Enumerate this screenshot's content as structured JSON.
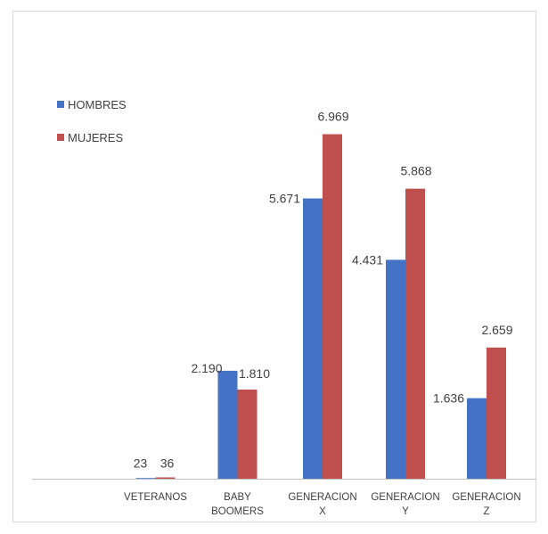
{
  "chart_data": {
    "type": "bar",
    "categories": [
      [
        "VETERANOS"
      ],
      [
        "BABY",
        "BOOMERS"
      ],
      [
        "GENERACION",
        "X"
      ],
      [
        "GENERACION",
        "Y"
      ],
      [
        "GENERACION",
        "Z"
      ]
    ],
    "series": [
      {
        "name": "HOMBRES",
        "color": "#4472c4",
        "values": [
          23,
          2190,
          5671,
          4431,
          1636
        ],
        "labels": [
          "23",
          "2.190",
          "5.671",
          "4.431",
          "1.636"
        ]
      },
      {
        "name": "MUJERES",
        "color": "#c0504d",
        "values": [
          36,
          1810,
          6969,
          5868,
          2659
        ],
        "labels": [
          "36",
          "1.810",
          "6.969",
          "5.868",
          "2.659"
        ]
      }
    ],
    "ylim": [
      0,
      7500
    ],
    "grid": false,
    "legend": "top-left",
    "title": "",
    "xlabel": "",
    "ylabel": ""
  }
}
